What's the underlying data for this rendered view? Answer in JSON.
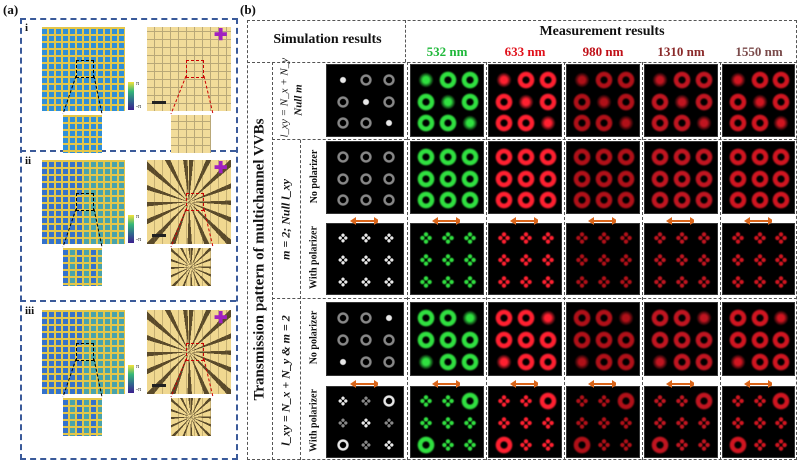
{
  "panel_a": {
    "label": "(a)",
    "sections": [
      {
        "roman": "i",
        "colorbar_max": "π",
        "colorbar_min": "-π"
      },
      {
        "roman": "ii",
        "colorbar_max": "π",
        "colorbar_min": "-π"
      },
      {
        "roman": "iii",
        "colorbar_max": "π",
        "colorbar_min": "-π"
      }
    ]
  },
  "panel_b": {
    "label": "(b)",
    "simulation_header": "Simulation results",
    "measurement_header": "Measurement results",
    "main_title": "Transmission pattern of multichannel VVBs",
    "wavelengths": [
      {
        "label": "532 nm",
        "color": "#1fb83a",
        "spot": "#30e040"
      },
      {
        "label": "633 nm",
        "color": "#e0101a",
        "spot": "#ff2030"
      },
      {
        "label": "980 nm",
        "color": "#c01018",
        "spot": "#b01018"
      },
      {
        "label": "1310 nm",
        "color": "#8a2a2a",
        "spot": "#c01520"
      },
      {
        "label": "1550 nm",
        "color": "#7a4a4a",
        "spot": "#d01520"
      }
    ],
    "groups": [
      {
        "label": "l_xy = N_x + N_y",
        "label2": "Null m"
      },
      {
        "label": "m = 2; Null l_xy"
      },
      {
        "label": "l_xy = N_x + N_y & m = 2"
      }
    ],
    "rows": [
      {
        "sublabel": "",
        "pattern": [
          "dot",
          "ring",
          "ringg",
          "ring",
          "dot",
          "ring",
          "ringg",
          "ring",
          "dot"
        ]
      },
      {
        "sublabel": "No polarizer",
        "pattern": [
          "ring",
          "ring",
          "ring",
          "ring",
          "ring",
          "ring",
          "ring",
          "ring",
          "ring"
        ]
      },
      {
        "sublabel": "With polarizer",
        "pattern": [
          "quad",
          "quad",
          "quad",
          "quad",
          "quad",
          "quad",
          "quad",
          "quad",
          "quad"
        ]
      },
      {
        "sublabel": "No polarizer",
        "pattern": [
          "ringg",
          "ringg",
          "dotr",
          "ringg",
          "ring",
          "ringg",
          "dotr",
          "ringg",
          "ring"
        ]
      },
      {
        "sublabel": "With polarizer",
        "pattern": [
          "quad",
          "quadg",
          "ringd",
          "quadg",
          "quad",
          "quadg",
          "ringd",
          "quadg",
          "quad"
        ]
      }
    ],
    "arrow_color": "#d9651a"
  }
}
